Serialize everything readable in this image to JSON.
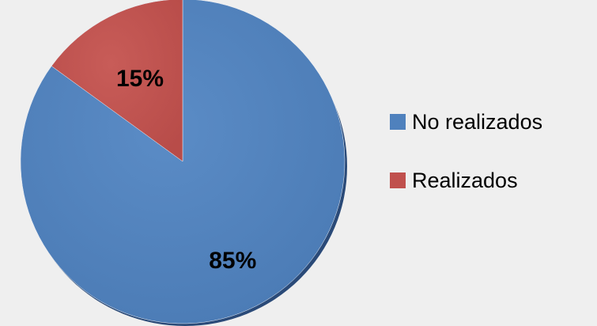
{
  "chart_data": {
    "type": "pie",
    "title": "",
    "categories": [
      "No realizados",
      "Realizados"
    ],
    "values": [
      85,
      15
    ],
    "unit": "%",
    "data_labels": [
      "85%",
      "15%"
    ],
    "colors": [
      "#4f81bd",
      "#c0504d"
    ],
    "start": "12 o'clock, clockwise",
    "legend_position": "right",
    "style": "3d-shadow"
  }
}
